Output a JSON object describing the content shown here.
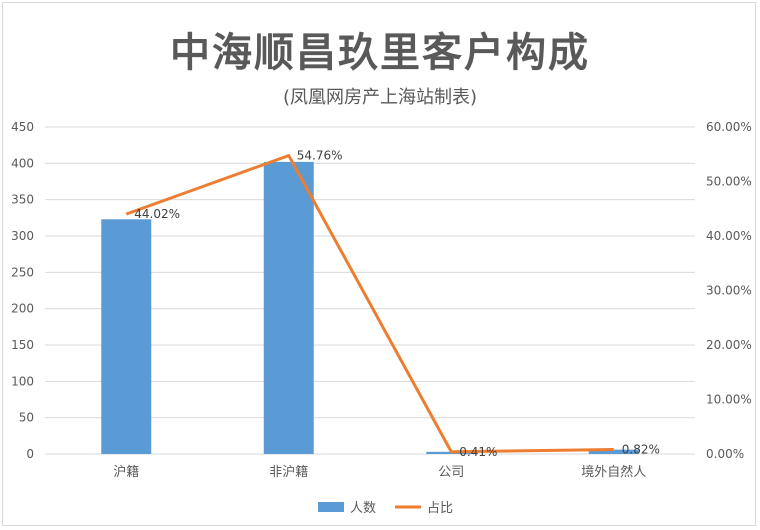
{
  "chart_data": {
    "type": "bar",
    "title": "中海顺昌玖里客户构成",
    "subtitle": "(凤凰网房产上海站制表)",
    "categories": [
      "沪籍",
      "非沪籍",
      "公司",
      "境外自然人"
    ],
    "series": [
      {
        "name": "人数",
        "type": "bar",
        "axis": "left",
        "values": [
          323,
          402,
          3,
          6
        ],
        "color": "#5b9bd5"
      },
      {
        "name": "占比",
        "type": "line",
        "axis": "right",
        "values": [
          44.02,
          54.76,
          0.41,
          0.82
        ],
        "color": "#ed7d31"
      }
    ],
    "data_labels": [
      "44.02%",
      "54.76%",
      "0.41%",
      "0.82%"
    ],
    "left_axis": {
      "ylim": [
        0,
        450
      ],
      "ticks": [
        "0",
        "50",
        "100",
        "150",
        "200",
        "250",
        "300",
        "350",
        "400",
        "450"
      ]
    },
    "right_axis": {
      "ylim": [
        0,
        60
      ],
      "ticks": [
        "0.00%",
        "10.00%",
        "20.00%",
        "30.00%",
        "40.00%",
        "50.00%",
        "60.00%"
      ]
    },
    "grid": true,
    "legend": "bottom"
  }
}
